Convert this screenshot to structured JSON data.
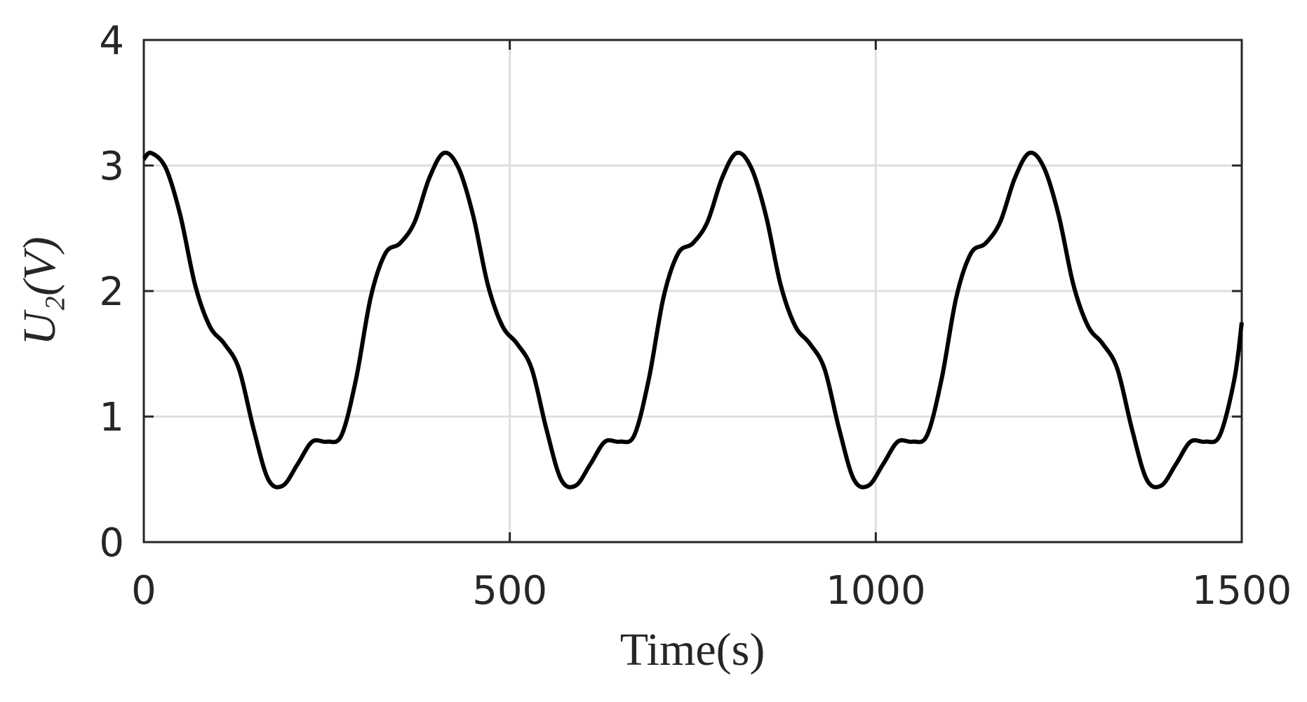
{
  "chart_data": {
    "type": "line",
    "xlabel": "Time(s)",
    "ylabel": "U₂(V)",
    "x": [
      0,
      10,
      30,
      50,
      70,
      90,
      110,
      130,
      150,
      170,
      190,
      210,
      230,
      250,
      270,
      290,
      310,
      330,
      350,
      370,
      390,
      410,
      430,
      450,
      470,
      490,
      510,
      530,
      550,
      570,
      590,
      610,
      630,
      650,
      670,
      690,
      710,
      730,
      750,
      770,
      790,
      810,
      830,
      850,
      870,
      890,
      910,
      930,
      950,
      970,
      990,
      1010,
      1030,
      1050,
      1070,
      1090,
      1110,
      1130,
      1150,
      1170,
      1190,
      1210,
      1230,
      1250,
      1270,
      1290,
      1310,
      1330,
      1350,
      1370,
      1390,
      1410,
      1430,
      1450,
      1470,
      1490,
      1500
    ],
    "series": [
      {
        "name": "U2",
        "color": "#000000",
        "values": [
          3.05,
          3.1,
          2.98,
          2.6,
          2.05,
          1.72,
          1.58,
          1.38,
          0.9,
          0.5,
          0.45,
          0.62,
          0.8,
          0.8,
          0.85,
          1.3,
          1.95,
          2.3,
          2.38,
          2.55,
          2.9,
          3.1,
          2.98,
          2.6,
          2.05,
          1.72,
          1.58,
          1.38,
          0.9,
          0.5,
          0.45,
          0.62,
          0.8,
          0.8,
          0.85,
          1.3,
          1.95,
          2.3,
          2.38,
          2.55,
          2.9,
          3.1,
          2.98,
          2.6,
          2.05,
          1.72,
          1.58,
          1.38,
          0.9,
          0.5,
          0.45,
          0.62,
          0.8,
          0.8,
          0.85,
          1.3,
          1.95,
          2.3,
          2.38,
          2.55,
          2.9,
          3.1,
          2.98,
          2.6,
          2.05,
          1.72,
          1.58,
          1.38,
          0.9,
          0.5,
          0.45,
          0.62,
          0.8,
          0.8,
          0.85,
          1.3,
          1.75
        ]
      }
    ],
    "xlim": [
      0,
      1500
    ],
    "xticks": [
      0,
      500,
      1000,
      1500
    ],
    "ylim": [
      0,
      4
    ],
    "yticks": [
      0,
      1,
      2,
      3,
      4
    ],
    "grid": true
  }
}
